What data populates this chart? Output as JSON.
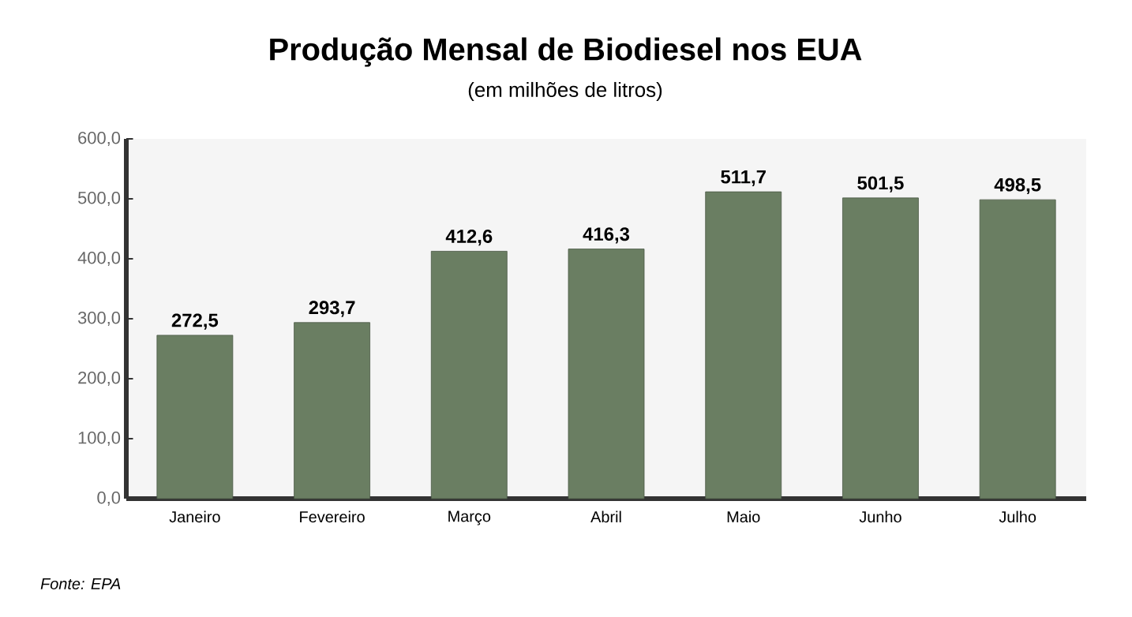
{
  "chart_data": {
    "type": "bar",
    "title": "Produção Mensal de Biodiesel nos EUA",
    "subtitle": "(em milhões de litros)",
    "categories": [
      "Janeiro",
      "Fevereiro",
      "Março",
      "Abril",
      "Maio",
      "Junho",
      "Julho"
    ],
    "values": [
      272.5,
      293.7,
      412.6,
      416.3,
      511.7,
      501.5,
      498.5
    ],
    "value_labels": [
      "272,5",
      "293,7",
      "412,6",
      "416,3",
      "511,7",
      "501,5",
      "498,5"
    ],
    "color": "#6a7e62",
    "ylim": [
      0,
      600
    ],
    "yticks": [
      {
        "value": 0,
        "label": "0,0"
      },
      {
        "value": 100,
        "label": "100,0"
      },
      {
        "value": 200,
        "label": "200,0"
      },
      {
        "value": 300,
        "label": "300,0"
      },
      {
        "value": 400,
        "label": "400,0"
      },
      {
        "value": 500,
        "label": "500,0"
      },
      {
        "value": 600,
        "label": "600,0"
      }
    ],
    "annotations": [
      "Fonte:  EPA"
    ]
  }
}
